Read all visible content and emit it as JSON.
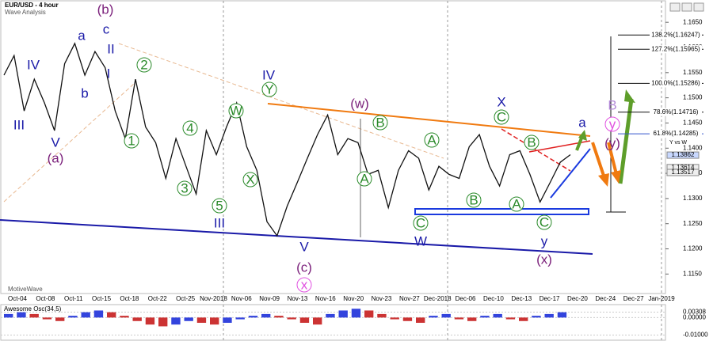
{
  "header": {
    "title": "EUR/USD - 4 hour",
    "subtitle": "Wave Analysis",
    "brand": "MotiveWave",
    "legend": "Y vs W"
  },
  "chart_data": [
    {
      "type": "line",
      "color": "#111111",
      "values": [
        1.1545,
        1.1584,
        1.1474,
        1.1537,
        1.149,
        1.1435,
        1.1568,
        1.1608,
        1.1545,
        1.1592,
        1.156,
        1.1474,
        1.1419,
        1.1537,
        1.1442,
        1.1411,
        1.134,
        1.1419,
        1.1364,
        1.1309,
        1.1435,
        1.1387,
        1.1442,
        1.149,
        1.1403,
        1.1356,
        1.1254,
        1.1226,
        1.1285,
        1.1332,
        1.138,
        1.1427,
        1.1466,
        1.1387,
        1.1419,
        1.1411,
        1.1348,
        1.1356,
        1.1282,
        1.1356,
        1.1395,
        1.138,
        1.1317,
        1.1364,
        1.1348,
        1.134,
        1.1403,
        1.1427,
        1.1364,
        1.1325,
        1.1387,
        1.1395,
        1.1348,
        1.1293,
        1.1332,
        1.1372,
        1.1387
      ],
      "x_labels": [
        "Oct-04",
        "Oct-08",
        "Oct-11",
        "Oct-15",
        "Oct-18",
        "Oct-22",
        "Oct-25",
        "Nov-2018",
        "Nov-06",
        "Nov-09",
        "Nov-13",
        "Nov-16",
        "Nov-20",
        "Nov-23",
        "Nov-27",
        "Dec-2018",
        "Dec-06",
        "Dec-10",
        "Dec-13",
        "Dec-17",
        "Dec-20",
        "Dec-24",
        "Dec-27",
        "Jan-2019"
      ],
      "ylim": [
        1.1105,
        1.1666
      ],
      "yticks": [
        {
          "value": 1.165,
          "label": "1.1650"
        },
        {
          "value": 1.16,
          "label": "1.1600"
        },
        {
          "value": 1.155,
          "label": "1.1550"
        },
        {
          "value": 1.15,
          "label": "1.1500"
        },
        {
          "value": 1.145,
          "label": "1.1450"
        },
        {
          "value": 1.14,
          "label": "1.1400"
        },
        {
          "value": 1.135,
          "label": "1.1350"
        },
        {
          "value": 1.13,
          "label": "1.1300"
        },
        {
          "value": 1.125,
          "label": "1.1250"
        },
        {
          "value": 1.12,
          "label": "1.1200"
        },
        {
          "value": 1.115,
          "label": "1.1150"
        }
      ],
      "price_tags": [
        1.13862,
        1.13614,
        1.13517
      ],
      "fib_levels": [
        {
          "value": 1.16247,
          "label": "138.2%(1.16247)"
        },
        {
          "value": 1.15965,
          "label": "127.2%(1.15965)"
        },
        {
          "value": 1.15286,
          "label": "100.0%(1.15286)"
        },
        {
          "value": 1.14716,
          "label": "78.6%(1.14716)"
        },
        {
          "value": 1.14285,
          "label": "61.8%(1.14285)"
        }
      ]
    },
    {
      "type": "bar",
      "title": "Awesome Osc(34,5)",
      "rise_color": "#3344dd",
      "fall_color": "#cc3333",
      "values": [
        0.002,
        0.003,
        0.002,
        -0.001,
        -0.002,
        0.001,
        0.003,
        0.004,
        0.003,
        0.001,
        -0.002,
        -0.004,
        -0.005,
        -0.004,
        -0.002,
        -0.003,
        -0.004,
        -0.003,
        -0.001,
        0.001,
        0.002,
        0.001,
        -0.001,
        -0.003,
        -0.004,
        0.002,
        0.004,
        0.005,
        0.004,
        0.002,
        -0.001,
        -0.002,
        -0.003,
        0.001,
        0.002,
        -0.001,
        -0.002,
        0.001,
        0.002,
        -0.001,
        -0.002,
        0.001,
        0.002,
        0.003
      ],
      "ylim": [
        -0.012,
        0.006
      ],
      "yticks": [
        {
          "value": 0.00308,
          "label": "0.00308"
        },
        {
          "value": 0,
          "label": "0.00000"
        },
        {
          "value": -0.01,
          "label": "-0.01000"
        }
      ]
    }
  ],
  "wave_labels": [
    "(b)",
    "(a)",
    "a",
    "c",
    "b",
    "IV",
    "III",
    "V",
    "II",
    "I",
    "1",
    "2",
    "3",
    "4",
    "5",
    "III",
    "W",
    "X",
    "Y",
    "IV",
    "V",
    "(c)",
    "x",
    "(w)",
    "A",
    "B",
    "C",
    "W",
    "A",
    "B",
    "X",
    "C",
    "A",
    "B",
    "C",
    "y",
    "(x)",
    "a",
    "B",
    "y",
    "(y)"
  ]
}
